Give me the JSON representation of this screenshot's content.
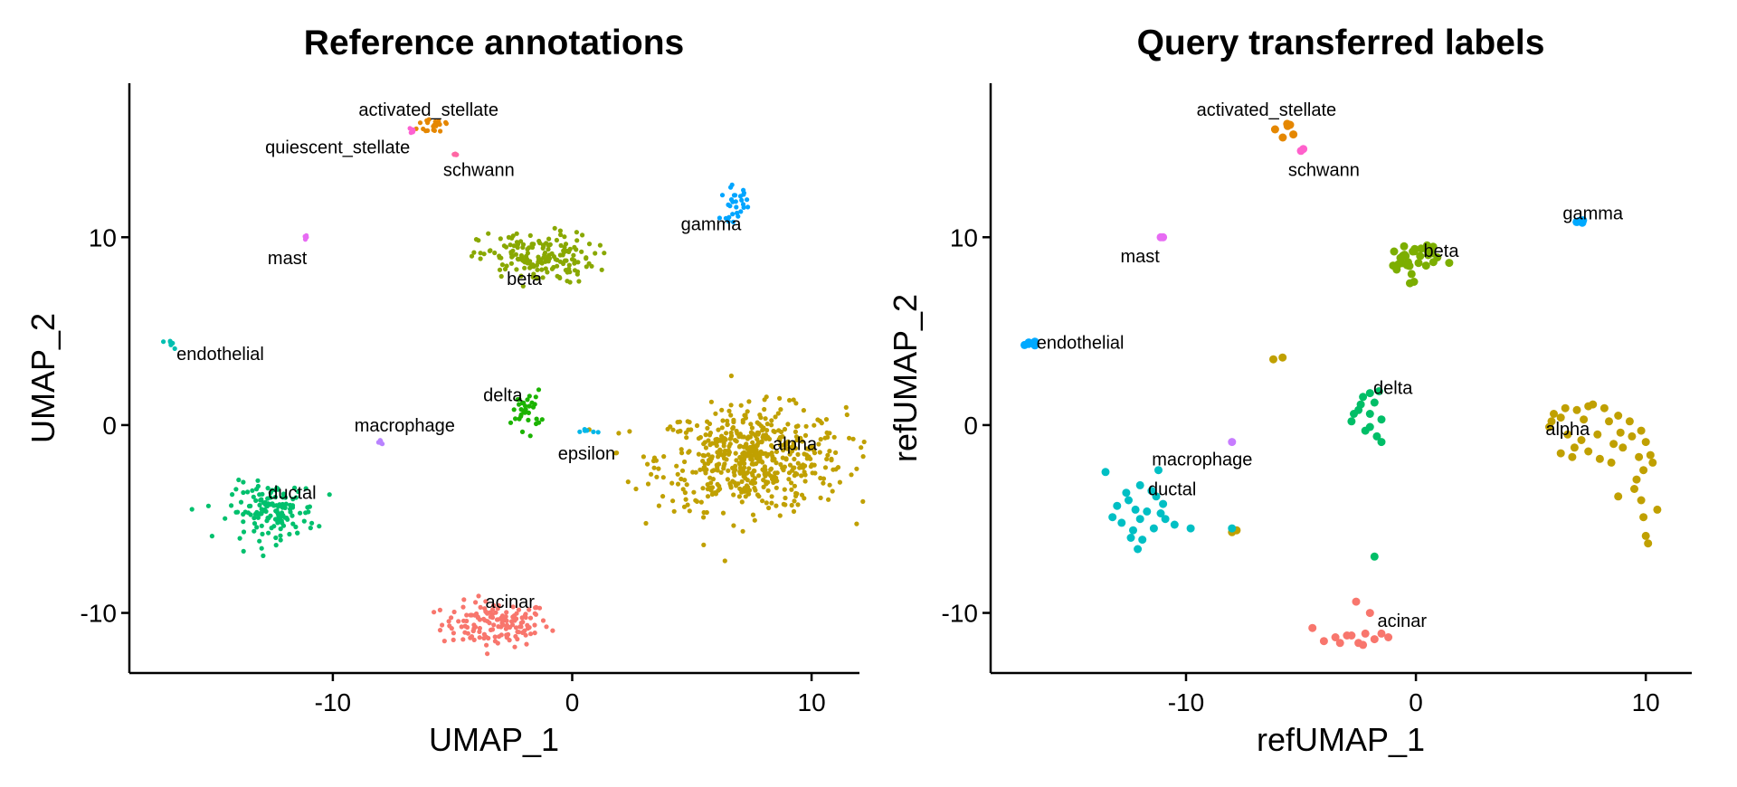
{
  "chart_data": [
    {
      "type": "scatter",
      "title": "Reference annotations",
      "xlabel": "UMAP_1",
      "ylabel": "UMAP_2",
      "xlim": [
        -18.5,
        12
      ],
      "ylim": [
        -13.2,
        18.2
      ],
      "xticks": [
        -10,
        0,
        10
      ],
      "yticks": [
        -10,
        0,
        10
      ],
      "grid": false,
      "legend": "none",
      "series": [
        {
          "name": "acinar",
          "color": "#F8766D",
          "cluster": {
            "cx": -3.2,
            "cy": -10.6,
            "sx": 1.5,
            "sy": 0.8
          }
        },
        {
          "name": "activated_stellate",
          "color": "#E58700",
          "cluster": {
            "cx": -5.7,
            "cy": 16.0,
            "sx": 0.5,
            "sy": 0.35
          }
        },
        {
          "name": "alpha",
          "color": "#C0A000",
          "cluster": {
            "cx": 7.5,
            "cy": -1.8,
            "sx": 2.6,
            "sy": 1.8
          }
        },
        {
          "name": "beta",
          "color": "#89A800",
          "cluster": {
            "cx": -1.5,
            "cy": 8.9,
            "sx": 1.6,
            "sy": 0.9
          }
        },
        {
          "name": "delta",
          "color": "#1BB300",
          "cluster": {
            "cx": -1.9,
            "cy": 0.8,
            "sx": 0.4,
            "sy": 0.7
          }
        },
        {
          "name": "ductal",
          "color": "#00C06D",
          "cluster": {
            "cx": -12.5,
            "cy": -4.6,
            "sx": 1.2,
            "sy": 1.0
          }
        },
        {
          "name": "endothelial",
          "color": "#00BFB0",
          "cluster": {
            "cx": -16.7,
            "cy": 4.3,
            "sx": 0.25,
            "sy": 0.15
          }
        },
        {
          "name": "epsilon",
          "color": "#00B7E8",
          "cluster": {
            "cx": 0.5,
            "cy": -0.3,
            "sx": 0.3,
            "sy": 0.1
          }
        },
        {
          "name": "gamma",
          "color": "#00A5FF",
          "cluster": {
            "cx": 6.8,
            "cy": 11.8,
            "sx": 0.4,
            "sy": 0.6
          }
        },
        {
          "name": "macrophage",
          "color": "#B983FF",
          "cluster": {
            "cx": -8.0,
            "cy": -0.9,
            "sx": 0.1,
            "sy": 0.08
          }
        },
        {
          "name": "mast",
          "color": "#E76BF3",
          "cluster": {
            "cx": -11.1,
            "cy": 10.0,
            "sx": 0.05,
            "sy": 0.05
          }
        },
        {
          "name": "quiescent_stellate",
          "color": "#FD61D1",
          "cluster": {
            "cx": -6.7,
            "cy": 15.7,
            "sx": 0.1,
            "sy": 0.15
          }
        },
        {
          "name": "schwann",
          "color": "#FF67A4",
          "cluster": {
            "cx": -4.9,
            "cy": 14.4,
            "sx": 0.05,
            "sy": 0.05
          }
        }
      ],
      "annotations": [
        {
          "text": "activated_stellate",
          "x": -6.0,
          "y": 16.8
        },
        {
          "text": "quiescent_stellate",
          "x": -9.8,
          "y": 14.8
        },
        {
          "text": "schwann",
          "x": -3.9,
          "y": 13.6
        },
        {
          "text": "gamma",
          "x": 5.8,
          "y": 10.7
        },
        {
          "text": "mast",
          "x": -11.9,
          "y": 8.9
        },
        {
          "text": "beta",
          "x": -2.0,
          "y": 7.8
        },
        {
          "text": "endothelial",
          "x": -14.7,
          "y": 3.8
        },
        {
          "text": "delta",
          "x": -2.9,
          "y": 1.6
        },
        {
          "text": "macrophage",
          "x": -7.0,
          "y": 0.0
        },
        {
          "text": "epsilon",
          "x": 0.6,
          "y": -1.5
        },
        {
          "text": "alpha",
          "x": 9.3,
          "y": -1.0
        },
        {
          "text": "ductal",
          "x": -11.7,
          "y": -3.6
        },
        {
          "text": "acinar",
          "x": -2.6,
          "y": -9.4
        }
      ]
    },
    {
      "type": "scatter",
      "title": "Query transferred labels",
      "xlabel": "refUMAP_1",
      "ylabel": "refUMAP_2",
      "xlim": [
        -18.5,
        12
      ],
      "ylim": [
        -13.2,
        18.2
      ],
      "xticks": [
        -10,
        0,
        10
      ],
      "yticks": [
        -10,
        0,
        10
      ],
      "grid": false,
      "legend": "none",
      "series": [
        {
          "name": "acinar",
          "color": "#F8766D",
          "points": [
            [
              -2.6,
              -9.4
            ],
            [
              -2.0,
              -10.0
            ],
            [
              -3.0,
              -11.2
            ],
            [
              -2.5,
              -11.6
            ],
            [
              -1.8,
              -11.4
            ],
            [
              -1.2,
              -11.3
            ],
            [
              -2.2,
              -11.1
            ],
            [
              -3.5,
              -11.3
            ],
            [
              -4.0,
              -11.5
            ],
            [
              -4.5,
              -10.8
            ],
            [
              -2.8,
              -11.2
            ],
            [
              -1.5,
              -11.1
            ],
            [
              -2.3,
              -11.7
            ],
            [
              -3.3,
              -11.6
            ]
          ]
        },
        {
          "name": "activated_stellate",
          "color": "#E58700",
          "cluster": {
            "cx": -5.5,
            "cy": 15.8,
            "sx": 0.35,
            "sy": 0.3
          }
        },
        {
          "name": "alpha",
          "color": "#C0A000",
          "points": [
            [
              5.8,
              -0.1
            ],
            [
              6.3,
              0.4
            ],
            [
              7.0,
              0.8
            ],
            [
              7.5,
              1.0
            ],
            [
              8.2,
              0.9
            ],
            [
              8.8,
              0.5
            ],
            [
              9.3,
              0.2
            ],
            [
              9.8,
              -0.3
            ],
            [
              10.0,
              -0.9
            ],
            [
              10.2,
              -1.6
            ],
            [
              9.9,
              -2.4
            ],
            [
              9.6,
              -2.9
            ],
            [
              10.5,
              -4.5
            ],
            [
              9.9,
              -4.9
            ],
            [
              10.0,
              -5.9
            ],
            [
              10.1,
              -6.3
            ],
            [
              6.3,
              -1.5
            ],
            [
              6.8,
              -1.7
            ],
            [
              7.5,
              -1.4
            ],
            [
              8.0,
              -1.8
            ],
            [
              8.5,
              -2.0
            ],
            [
              9.0,
              -1.2
            ],
            [
              9.8,
              -4.0
            ],
            [
              8.8,
              -3.8
            ],
            [
              7.2,
              -0.8
            ],
            [
              6.6,
              -0.5
            ],
            [
              7.9,
              -0.5
            ],
            [
              8.4,
              0.2
            ],
            [
              6.0,
              0.6
            ],
            [
              7.3,
              0.3
            ],
            [
              9.4,
              -0.6
            ],
            [
              9.7,
              -1.7
            ],
            [
              8.9,
              -0.4
            ],
            [
              6.9,
              -1.2
            ],
            [
              5.9,
              0.2
            ],
            [
              6.5,
              0.9
            ],
            [
              7.7,
              1.1
            ],
            [
              8.6,
              -1.0
            ],
            [
              10.3,
              -2.0
            ],
            [
              9.5,
              -3.4
            ],
            [
              -5.8,
              3.6
            ],
            [
              -6.2,
              3.5
            ],
            [
              -7.8,
              -5.6
            ],
            [
              -8.0,
              -5.7
            ]
          ]
        },
        {
          "name": "beta",
          "color": "#7CAE00",
          "cluster": {
            "cx": -0.2,
            "cy": 8.8,
            "sx": 0.8,
            "sy": 0.7
          }
        },
        {
          "name": "delta",
          "color": "#00BE67",
          "points": [
            [
              -2.0,
              1.7
            ],
            [
              -2.3,
              1.5
            ],
            [
              -1.8,
              1.2
            ],
            [
              -2.5,
              0.8
            ],
            [
              -2.0,
              0.6
            ],
            [
              -1.5,
              0.3
            ],
            [
              -2.8,
              0.2
            ],
            [
              -2.2,
              -0.3
            ],
            [
              -1.7,
              -0.6
            ],
            [
              -1.5,
              -0.9
            ],
            [
              -2.0,
              -0.1
            ],
            [
              -1.6,
              1.8
            ],
            [
              -1.8,
              -7.0
            ],
            [
              -2.4,
              1.1
            ],
            [
              -2.7,
              0.6
            ]
          ]
        },
        {
          "name": "ductal",
          "color": "#00BFC4",
          "points": [
            [
              -13.5,
              -2.5
            ],
            [
              -11.2,
              -2.4
            ],
            [
              -12.0,
              -3.2
            ],
            [
              -11.5,
              -3.5
            ],
            [
              -12.5,
              -4.0
            ],
            [
              -13.0,
              -4.3
            ],
            [
              -12.2,
              -4.5
            ],
            [
              -11.7,
              -4.6
            ],
            [
              -11.0,
              -4.2
            ],
            [
              -10.9,
              -5.0
            ],
            [
              -11.4,
              -5.5
            ],
            [
              -12.3,
              -5.6
            ],
            [
              -12.8,
              -5.2
            ],
            [
              -11.9,
              -6.1
            ],
            [
              -12.1,
              -6.6
            ],
            [
              -10.5,
              -5.3
            ],
            [
              -9.8,
              -5.5
            ],
            [
              -8.0,
              -5.5
            ],
            [
              -11.3,
              -3.8
            ],
            [
              -12.6,
              -3.6
            ],
            [
              -13.2,
              -4.9
            ],
            [
              -12.0,
              -5.0
            ],
            [
              -11.1,
              -4.7
            ],
            [
              -12.4,
              -6.0
            ]
          ]
        },
        {
          "name": "endothelial",
          "color": "#00A9FF",
          "cluster": {
            "cx": -16.8,
            "cy": 4.4,
            "sx": 0.15,
            "sy": 0.15
          }
        },
        {
          "name": "gamma",
          "color": "#00A9FF",
          "cluster": {
            "cx": 7.1,
            "cy": 10.8,
            "sx": 0.15,
            "sy": 0.12
          }
        },
        {
          "name": "macrophage",
          "color": "#C77CFF",
          "points": [
            [
              -8.0,
              -0.9
            ]
          ]
        },
        {
          "name": "mast",
          "color": "#E76BF3",
          "points": [
            [
              -11.1,
              10.0
            ],
            [
              -11.0,
              10.0
            ]
          ]
        },
        {
          "name": "schwann",
          "color": "#FF61CC",
          "points": [
            [
              -4.9,
              14.7
            ],
            [
              -5.0,
              14.6
            ]
          ]
        }
      ],
      "annotations": [
        {
          "text": "activated_stellate",
          "x": -6.5,
          "y": 16.8
        },
        {
          "text": "schwann",
          "x": -4.0,
          "y": 13.6
        },
        {
          "text": "gamma",
          "x": 7.7,
          "y": 11.3
        },
        {
          "text": "beta",
          "x": 1.1,
          "y": 9.3
        },
        {
          "text": "mast",
          "x": -12.0,
          "y": 9.0
        },
        {
          "text": "endothelial",
          "x": -14.6,
          "y": 4.4
        },
        {
          "text": "delta",
          "x": -1.0,
          "y": 2.0
        },
        {
          "text": "alpha",
          "x": 6.6,
          "y": -0.2
        },
        {
          "text": "macrophage",
          "x": -9.3,
          "y": -1.8
        },
        {
          "text": "ductal",
          "x": -10.6,
          "y": -3.4
        },
        {
          "text": "acinar",
          "x": -0.6,
          "y": -10.4
        }
      ]
    }
  ]
}
